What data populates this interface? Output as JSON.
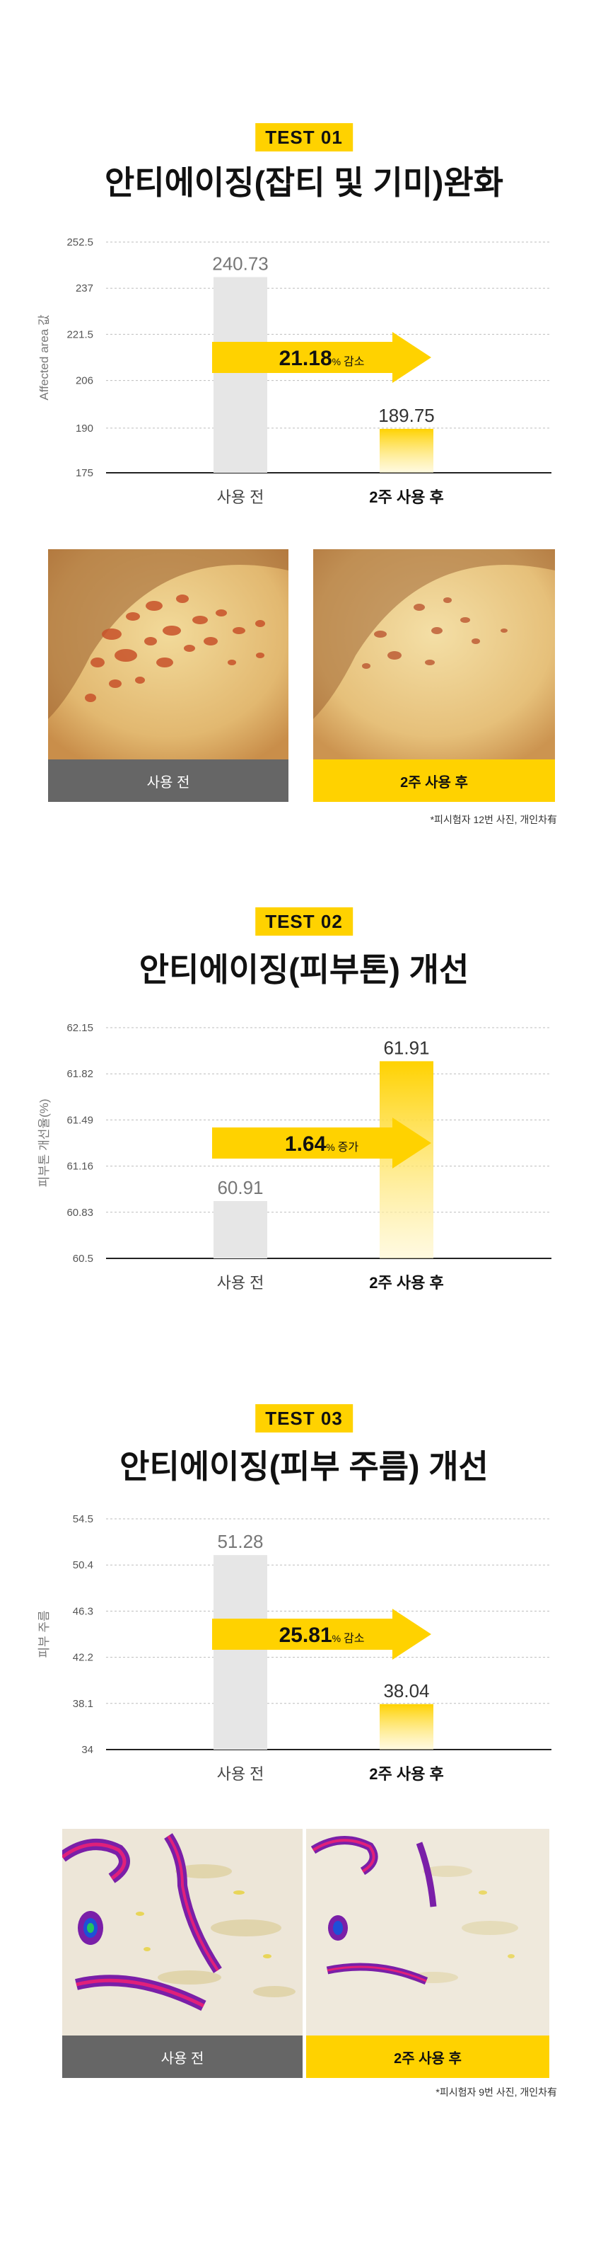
{
  "tests": [
    {
      "tag": "TEST 01",
      "title": "안티에이징(잡티 및 기미)완화",
      "photos": {
        "before_label": "사용 전",
        "after_label": "2주 사용 후"
      },
      "note": "*피시험자 12번 사진, 개인차有"
    },
    {
      "tag": "TEST 02",
      "title": "안티에이징(피부톤) 개선"
    },
    {
      "tag": "TEST 03",
      "title": "안티에이징(피부 주름) 개선",
      "photos": {
        "before_label": "사용 전",
        "after_label": "2주 사용 후"
      },
      "note": "*피시험자 9번 사진, 개인차有"
    }
  ],
  "colors": {
    "accent": "#FFD200",
    "before_bar": "#E6E6E6",
    "before_label_bg": "#666666"
  },
  "chart_data": [
    {
      "type": "bar",
      "categories": [
        "사용 전",
        "2주 사용 후"
      ],
      "values": [
        240.73,
        189.75
      ],
      "value_labels": [
        "240.73",
        "189.75"
      ],
      "ylabel": "Affected area 값",
      "yticks": [
        "175",
        "190",
        "206",
        "221.5",
        "237",
        "252.5"
      ],
      "ylim": [
        175,
        252.5
      ],
      "grid": true,
      "annotation": {
        "value": "21.18",
        "unit": "%",
        "text": "감소"
      }
    },
    {
      "type": "bar",
      "categories": [
        "사용 전",
        "2주 사용 후"
      ],
      "values": [
        60.91,
        61.91
      ],
      "value_labels": [
        "60.91",
        "61.91"
      ],
      "ylabel": "피부톤 개선율(%)",
      "yticks": [
        "60.5",
        "60.83",
        "61.16",
        "61.49",
        "61.82",
        "62.15"
      ],
      "ylim": [
        60.5,
        62.15
      ],
      "grid": true,
      "annotation": {
        "value": "1.64",
        "unit": "%",
        "text": "증가"
      }
    },
    {
      "type": "bar",
      "categories": [
        "사용 전",
        "2주 사용 후"
      ],
      "values": [
        51.28,
        38.04
      ],
      "value_labels": [
        "51.28",
        "38.04"
      ],
      "ylabel": "피부 주름",
      "yticks": [
        "34",
        "38.1",
        "42.2",
        "46.3",
        "50.4",
        "54.5"
      ],
      "ylim": [
        34,
        54.5
      ],
      "grid": true,
      "annotation": {
        "value": "25.81",
        "unit": "%",
        "text": "감소"
      }
    }
  ]
}
